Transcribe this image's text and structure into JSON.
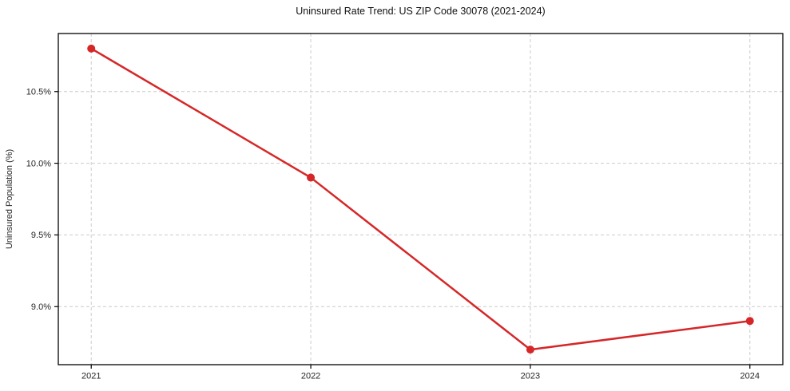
{
  "chart_data": {
    "type": "line",
    "title": "Uninsured Rate Trend: US ZIP Code 30078 (2021-2024)",
    "xlabel": "",
    "ylabel": "Uninsured Population (%)",
    "categories": [
      2021,
      2022,
      2023,
      2024
    ],
    "x_tick_labels": [
      "2021",
      "2022",
      "2023",
      "2024"
    ],
    "series": [
      {
        "name": "Uninsured rate",
        "values": [
          10.8,
          9.9,
          8.7,
          8.9
        ]
      }
    ],
    "y_ticks": [
      9.0,
      9.5,
      10.0,
      10.5
    ],
    "y_tick_labels": [
      "9.0%",
      "9.5%",
      "10.0%",
      "10.5%"
    ],
    "ylim": [
      8.595,
      10.905
    ],
    "xlim": [
      2020.85,
      2024.15
    ],
    "grid": true,
    "grid_style": "dashed",
    "legend": "none",
    "marker": "circle",
    "colors": {
      "line": "#d62728",
      "marker": "#d62728",
      "grid": "#cccccc",
      "spine": "#000000",
      "tick": "#000000",
      "text": "#262626",
      "background": "#ffffff"
    }
  }
}
